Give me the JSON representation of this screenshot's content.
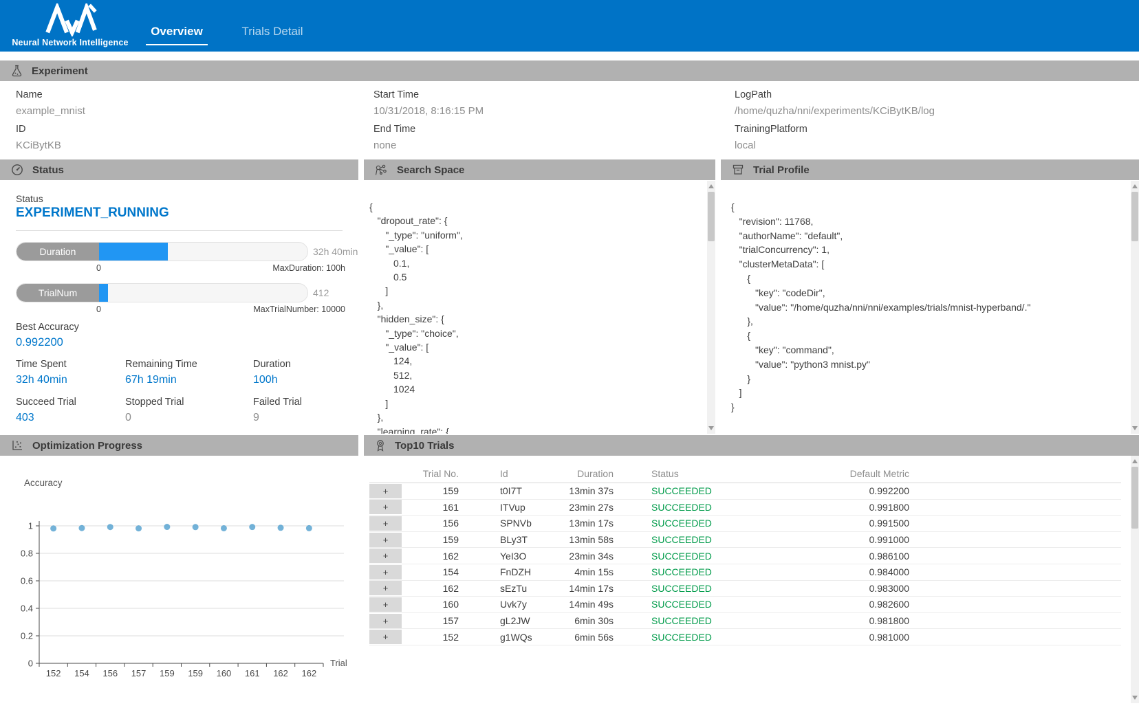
{
  "header": {
    "brand": "Neural Network Intelligence",
    "tabs": [
      {
        "label": "Overview",
        "active": true
      },
      {
        "label": "Trials Detail",
        "active": false
      }
    ]
  },
  "experiment": {
    "title": "Experiment",
    "fields": [
      {
        "label": "Name",
        "value": "example_mnist"
      },
      {
        "label": "ID",
        "value": "KCiBytKB"
      },
      {
        "label": "Start Time",
        "value": "10/31/2018, 8:16:15 PM"
      },
      {
        "label": "End Time",
        "value": "none"
      },
      {
        "label": "LogPath",
        "value": "/home/quzha/nni/experiments/KCiBytKB/log"
      },
      {
        "label": "TrainingPlatform",
        "value": "local"
      }
    ]
  },
  "status_panel": {
    "title": "Status",
    "status_label": "Status",
    "status_value": "EXPERIMENT_RUNNING",
    "bars": [
      {
        "label": "Duration",
        "value": "32h 40min",
        "min": "0",
        "max_label": "MaxDuration: 100h",
        "percent": 32.67
      },
      {
        "label": "TrialNum",
        "value": "412",
        "min": "0",
        "max_label": "MaxTrialNumber: 10000",
        "percent": 4.12
      }
    ],
    "best_accuracy_label": "Best Accuracy",
    "best_accuracy": "0.992200",
    "metrics": [
      {
        "label": "Time Spent",
        "value": "32h 40min",
        "accent": true
      },
      {
        "label": "Remaining Time",
        "value": "67h 19min",
        "accent": true
      },
      {
        "label": "Duration",
        "value": "100h",
        "accent": true
      },
      {
        "label": "Succeed Trial",
        "value": "403",
        "accent": true
      },
      {
        "label": "Stopped Trial",
        "value": "0",
        "accent": false
      },
      {
        "label": "Failed Trial",
        "value": "9",
        "accent": false
      }
    ]
  },
  "search_space": {
    "title": "Search Space",
    "json_text": "{\n   \"dropout_rate\": {\n      \"_type\": \"uniform\",\n      \"_value\": [\n         0.1,\n         0.5\n      ]\n   },\n   \"hidden_size\": {\n      \"_type\": \"choice\",\n      \"_value\": [\n         124,\n         512,\n         1024\n      ]\n   },\n   \"learning_rate\": {"
  },
  "trial_profile": {
    "title": "Trial Profile",
    "json_text": "{\n   \"revision\": 11768,\n   \"authorName\": \"default\",\n   \"trialConcurrency\": 1,\n   \"clusterMetaData\": [\n      {\n         \"key\": \"codeDir\",\n         \"value\": \"/home/quzha/nni/nni/examples/trials/mnist-hyperband/.\"\n      },\n      {\n         \"key\": \"command\",\n         \"value\": \"python3 mnist.py\"\n      }\n   ]\n}"
  },
  "optimization": {
    "title": "Optimization Progress"
  },
  "chart_data": {
    "type": "scatter",
    "title": "Optimization Progress",
    "xlabel": "Trial",
    "ylabel": "Accuracy",
    "x_tick_labels": [
      "152",
      "154",
      "156",
      "157",
      "159",
      "159",
      "160",
      "161",
      "162",
      "162"
    ],
    "values": [
      0.981,
      0.984,
      0.9915,
      0.9818,
      0.9922,
      0.991,
      0.9826,
      0.9918,
      0.9861,
      0.983
    ],
    "y_ticks": [
      0,
      0.2,
      0.4,
      0.6,
      0.8,
      1
    ],
    "ylim": [
      0,
      1
    ],
    "grid": true,
    "legend_position": "none",
    "point_color": "#5aa5d1"
  },
  "top10": {
    "title": "Top10 Trials",
    "expand_symbol": "+",
    "columns": [
      "Trial No.",
      "Id",
      "Duration",
      "Status",
      "Default Metric"
    ],
    "rows": [
      {
        "trial_no": "159",
        "id": "t0I7T",
        "duration": "13min 37s",
        "status": "SUCCEEDED",
        "metric": "0.992200"
      },
      {
        "trial_no": "161",
        "id": "ITVup",
        "duration": "23min 27s",
        "status": "SUCCEEDED",
        "metric": "0.991800"
      },
      {
        "trial_no": "156",
        "id": "SPNVb",
        "duration": "13min 17s",
        "status": "SUCCEEDED",
        "metric": "0.991500"
      },
      {
        "trial_no": "159",
        "id": "BLy3T",
        "duration": "13min 58s",
        "status": "SUCCEEDED",
        "metric": "0.991000"
      },
      {
        "trial_no": "162",
        "id": "YeI3O",
        "duration": "23min 34s",
        "status": "SUCCEEDED",
        "metric": "0.986100"
      },
      {
        "trial_no": "154",
        "id": "FnDZH",
        "duration": "4min 15s",
        "status": "SUCCEEDED",
        "metric": "0.984000"
      },
      {
        "trial_no": "162",
        "id": "sEzTu",
        "duration": "14min 17s",
        "status": "SUCCEEDED",
        "metric": "0.983000"
      },
      {
        "trial_no": "160",
        "id": "Uvk7y",
        "duration": "14min 49s",
        "status": "SUCCEEDED",
        "metric": "0.982600"
      },
      {
        "trial_no": "157",
        "id": "gL2JW",
        "duration": "6min 30s",
        "status": "SUCCEEDED",
        "metric": "0.981800"
      },
      {
        "trial_no": "152",
        "id": "g1WQs",
        "duration": "6min 56s",
        "status": "SUCCEEDED",
        "metric": "0.981000"
      }
    ]
  },
  "colors": {
    "header_blue": "#0073c6",
    "accent_blue": "#0077cb",
    "progress_blue": "#2196f3",
    "section_gray": "#b1b1b1",
    "success_green": "#009b4a",
    "scatter_blue": "#5aa5d1"
  }
}
